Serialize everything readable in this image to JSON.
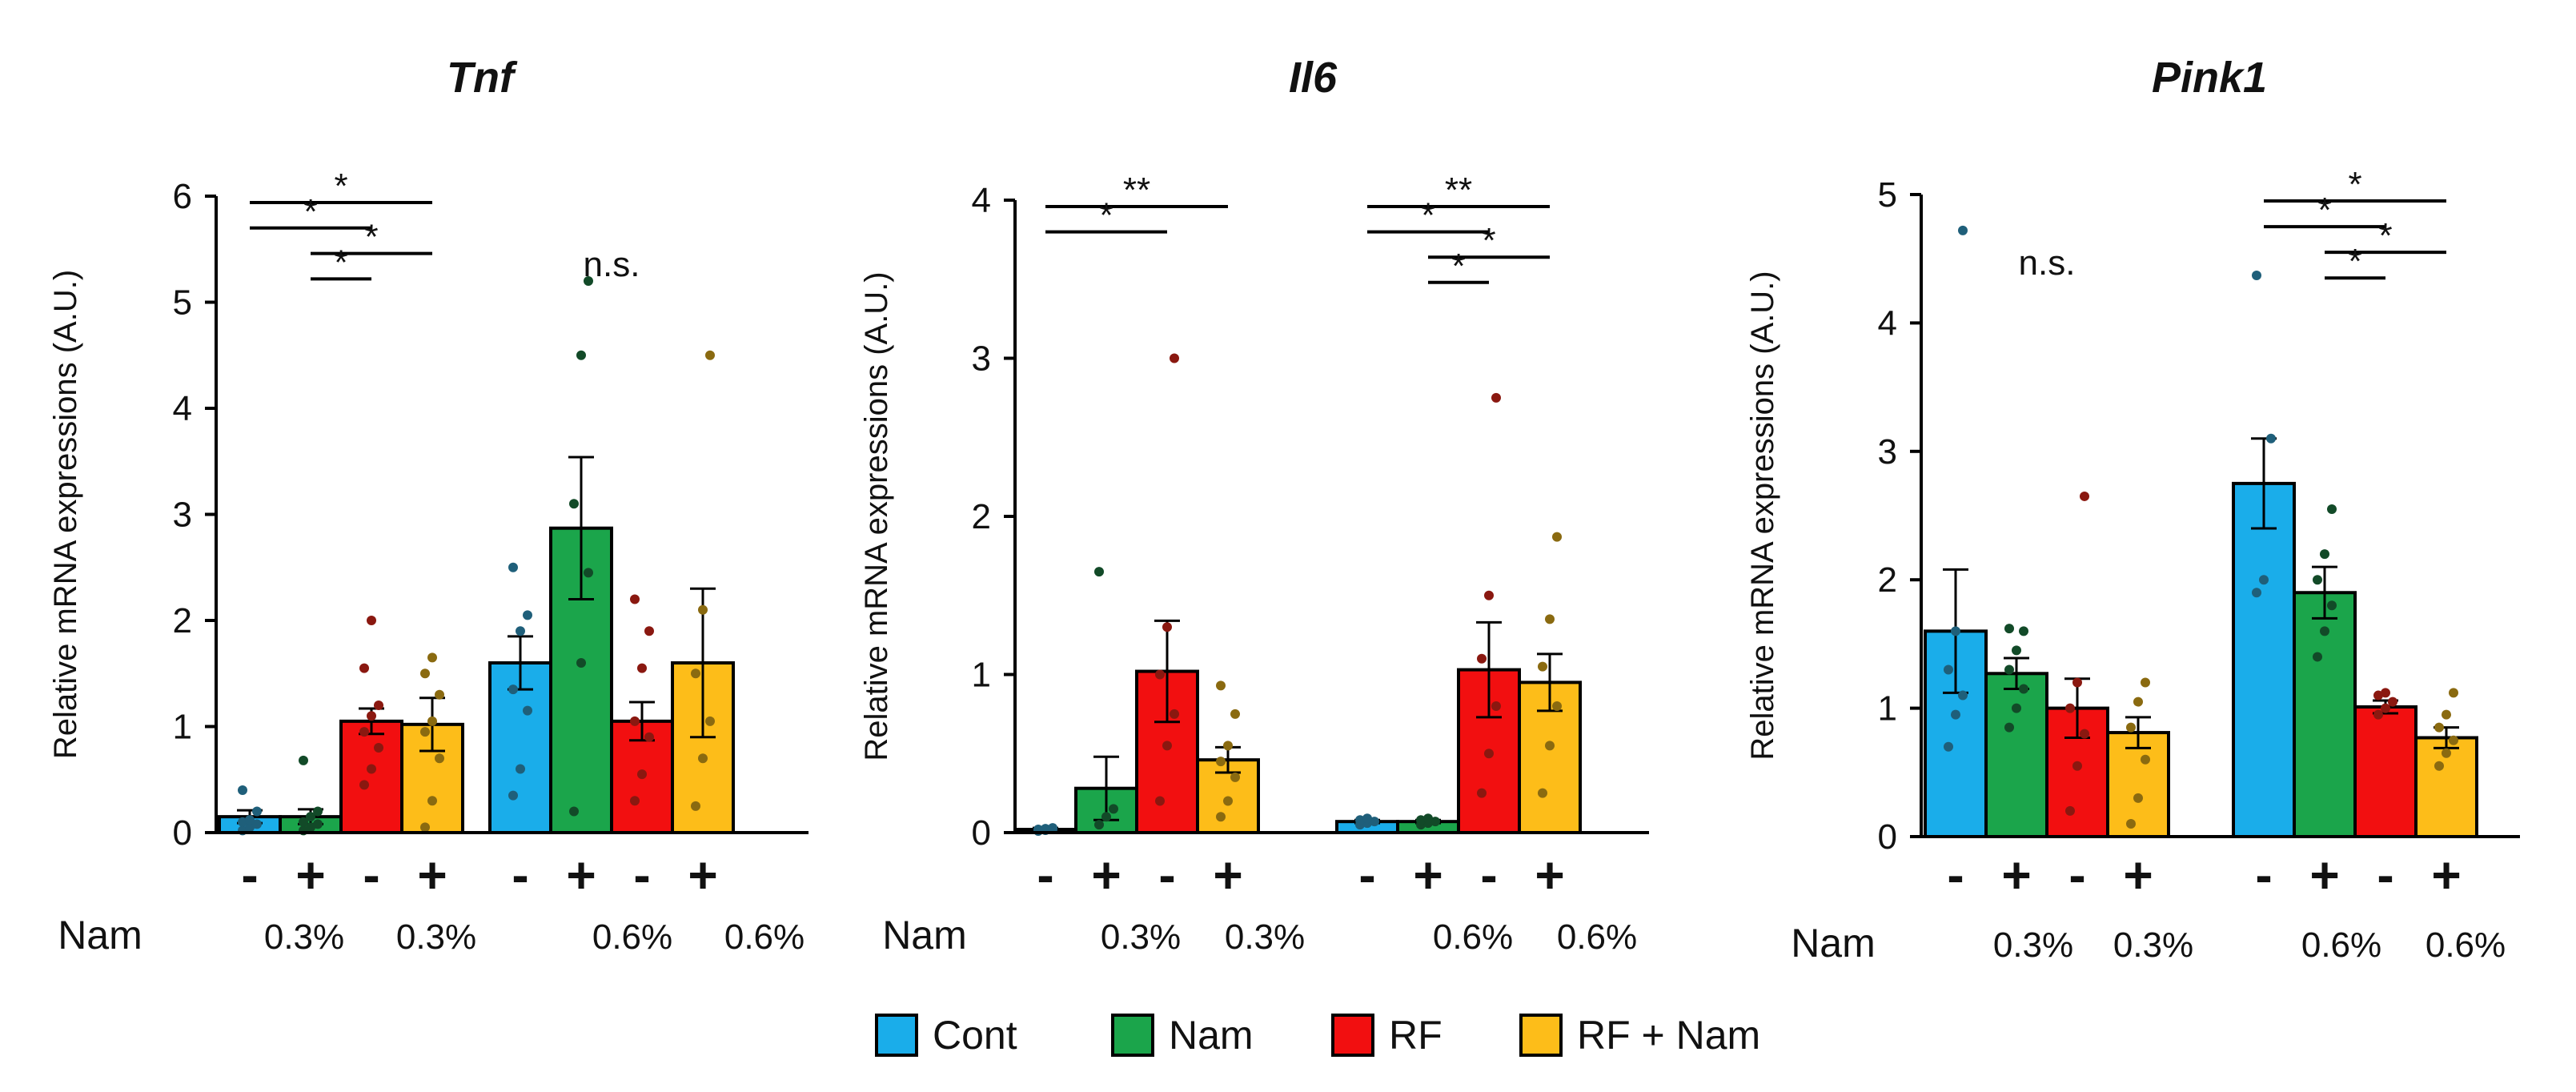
{
  "colors": {
    "Cont": "#1AADEA",
    "Nam": "#1BA54B",
    "RF": "#F20F10",
    "RF + Nam": "#FDBD19",
    "dots": {
      "Cont": "#1F5F7A",
      "Nam": "#124A28",
      "RF": "#8A1810",
      "RF + Nam": "#8A6A10"
    }
  },
  "legend": [
    "Cont",
    "Nam",
    "RF",
    "RF + Nam"
  ],
  "x_row_label": "Nam",
  "chart_data": [
    {
      "type": "bar",
      "title": "Tnf",
      "ylabel": "Relative mRNA expressions (A.U.)",
      "ylim": [
        0,
        6
      ],
      "yticks": [
        "0",
        "1",
        "2",
        "3",
        "4",
        "5",
        "6"
      ],
      "x_signs": [
        "-",
        "+",
        "-",
        "+",
        "-",
        "+",
        "-",
        "+"
      ],
      "x_conc": [
        "0.3%",
        "0.3%",
        "0.6%",
        "0.6%"
      ],
      "groups": [
        {
          "label": "0.3%",
          "bars": [
            {
              "series": "Cont",
              "value": 0.15,
              "err": 0.06,
              "points": [
                0.02,
                0.05,
                0.08,
                0.1,
                0.12,
                0.2,
                0.4
              ]
            },
            {
              "series": "Nam",
              "value": 0.15,
              "err": 0.07,
              "points": [
                0.02,
                0.05,
                0.08,
                0.1,
                0.15,
                0.2,
                0.68
              ]
            },
            {
              "series": "RF",
              "value": 1.05,
              "err": 0.12,
              "points": [
                0.45,
                0.6,
                0.8,
                0.95,
                1.1,
                1.2,
                1.55,
                2.0
              ]
            },
            {
              "series": "RF + Nam",
              "value": 1.02,
              "err": 0.25,
              "points": [
                0.05,
                0.3,
                0.7,
                0.95,
                1.05,
                1.3,
                1.5,
                1.65
              ]
            }
          ],
          "significance": [
            {
              "from": 0,
              "to": 3,
              "label": "*"
            },
            {
              "from": 0,
              "to": 2,
              "label": "*"
            },
            {
              "from": 1,
              "to": 3,
              "label": "*"
            },
            {
              "from": 1,
              "to": 2,
              "label": "*"
            }
          ]
        },
        {
          "label": "0.6%",
          "bars": [
            {
              "series": "Cont",
              "value": 1.6,
              "err": 0.25,
              "points": [
                0.35,
                0.6,
                1.15,
                1.35,
                1.9,
                2.05,
                2.5
              ]
            },
            {
              "series": "Nam",
              "value": 2.87,
              "err": 0.67,
              "points": [
                0.2,
                1.6,
                2.45,
                3.1,
                4.5,
                5.2
              ]
            },
            {
              "series": "RF",
              "value": 1.05,
              "err": 0.18,
              "points": [
                0.3,
                0.55,
                0.9,
                1.05,
                1.55,
                1.9,
                2.2
              ]
            },
            {
              "series": "RF + Nam",
              "value": 1.6,
              "err": 0.7,
              "points": [
                0.25,
                0.7,
                1.05,
                1.5,
                2.1,
                4.5
              ]
            }
          ],
          "ns_label": "n.s."
        }
      ]
    },
    {
      "type": "bar",
      "title": "Il6",
      "ylabel": "Relative mRNA expressions (A.U.)",
      "ylim": [
        0,
        4
      ],
      "yticks": [
        "0",
        "1",
        "2",
        "3",
        "4"
      ],
      "x_signs": [
        "-",
        "+",
        "-",
        "+",
        "-",
        "+",
        "-",
        "+"
      ],
      "x_conc": [
        "0.3%",
        "0.3%",
        "0.6%",
        "0.6%"
      ],
      "groups": [
        {
          "label": "0.3%",
          "bars": [
            {
              "series": "Cont",
              "value": 0.02,
              "err": 0.01,
              "points": [
                0.01,
                0.015,
                0.02,
                0.02,
                0.025,
                0.03
              ]
            },
            {
              "series": "Nam",
              "value": 0.28,
              "err": 0.2,
              "points": [
                0.05,
                0.1,
                0.15,
                1.65
              ]
            },
            {
              "series": "RF",
              "value": 1.02,
              "err": 0.32,
              "points": [
                0.2,
                0.55,
                0.75,
                1.0,
                1.3,
                3.0
              ]
            },
            {
              "series": "RF + Nam",
              "value": 0.46,
              "err": 0.08,
              "points": [
                0.1,
                0.2,
                0.35,
                0.45,
                0.55,
                0.75,
                0.93
              ]
            }
          ],
          "significance": [
            {
              "from": 0,
              "to": 3,
              "label": "**"
            },
            {
              "from": 0,
              "to": 2,
              "label": "*"
            }
          ]
        },
        {
          "label": "0.6%",
          "bars": [
            {
              "series": "Cont",
              "value": 0.07,
              "err": 0.01,
              "points": [
                0.05,
                0.06,
                0.07,
                0.08,
                0.09
              ]
            },
            {
              "series": "Nam",
              "value": 0.07,
              "err": 0.01,
              "points": [
                0.05,
                0.06,
                0.07,
                0.08,
                0.09
              ]
            },
            {
              "series": "RF",
              "value": 1.03,
              "err": 0.3,
              "points": [
                0.25,
                0.5,
                0.8,
                1.1,
                1.5,
                2.75
              ]
            },
            {
              "series": "RF + Nam",
              "value": 0.95,
              "err": 0.18,
              "points": [
                0.25,
                0.55,
                0.8,
                1.05,
                1.35,
                1.87
              ]
            }
          ],
          "significance": [
            {
              "from": 0,
              "to": 3,
              "label": "**"
            },
            {
              "from": 0,
              "to": 2,
              "label": "*"
            },
            {
              "from": 1,
              "to": 3,
              "label": "*"
            },
            {
              "from": 1,
              "to": 2,
              "label": "*"
            }
          ]
        }
      ]
    },
    {
      "type": "bar",
      "title": "Pink1",
      "ylabel": "Relative mRNA expressions (A.U.)",
      "ylim": [
        0,
        5
      ],
      "yticks": [
        "0",
        "1",
        "2",
        "3",
        "4",
        "5"
      ],
      "x_signs": [
        "-",
        "+",
        "-",
        "+",
        "-",
        "+",
        "-",
        "+"
      ],
      "x_conc": [
        "0.3%",
        "0.3%",
        "0.6%",
        "0.6%"
      ],
      "groups": [
        {
          "label": "0.3%",
          "bars": [
            {
              "series": "Cont",
              "value": 1.6,
              "err": 0.48,
              "points": [
                0.7,
                0.95,
                1.1,
                1.3,
                1.6,
                4.72
              ]
            },
            {
              "series": "Nam",
              "value": 1.27,
              "err": 0.12,
              "points": [
                0.85,
                1.0,
                1.15,
                1.3,
                1.45,
                1.6,
                1.62
              ]
            },
            {
              "series": "RF",
              "value": 1.0,
              "err": 0.23,
              "points": [
                0.2,
                0.55,
                0.8,
                1.0,
                1.2,
                2.65
              ]
            },
            {
              "series": "RF + Nam",
              "value": 0.81,
              "err": 0.12,
              "points": [
                0.1,
                0.3,
                0.6,
                0.85,
                1.05,
                1.2
              ]
            }
          ],
          "ns_label": "n.s."
        },
        {
          "label": "0.6%",
          "bars": [
            {
              "series": "Cont",
              "value": 2.75,
              "err": 0.35,
              "points": [
                1.9,
                2.0,
                3.1,
                4.37
              ]
            },
            {
              "series": "Nam",
              "value": 1.9,
              "err": 0.2,
              "points": [
                1.4,
                1.6,
                1.8,
                2.0,
                2.2,
                2.55
              ]
            },
            {
              "series": "RF",
              "value": 1.01,
              "err": 0.05,
              "points": [
                0.95,
                1.0,
                1.05,
                1.1,
                1.12
              ]
            },
            {
              "series": "RF + Nam",
              "value": 0.77,
              "err": 0.08,
              "points": [
                0.55,
                0.65,
                0.75,
                0.85,
                0.95,
                1.12
              ]
            }
          ],
          "significance": [
            {
              "from": 0,
              "to": 3,
              "label": "*"
            },
            {
              "from": 0,
              "to": 2,
              "label": "*"
            },
            {
              "from": 1,
              "to": 3,
              "label": "*"
            },
            {
              "from": 1,
              "to": 2,
              "label": "*"
            }
          ]
        }
      ]
    }
  ]
}
